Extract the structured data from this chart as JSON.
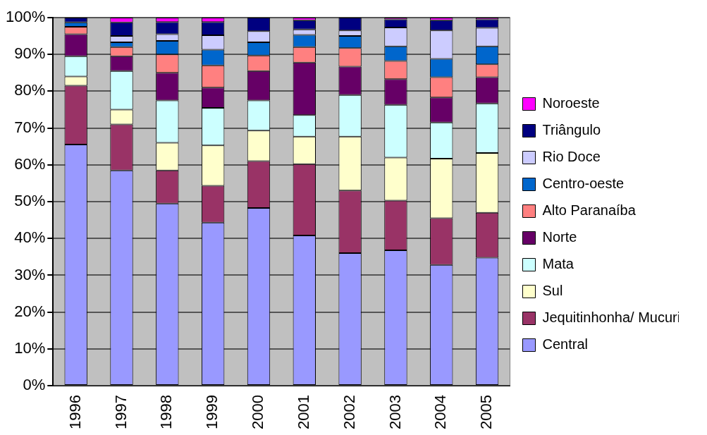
{
  "chart_data": {
    "type": "bar",
    "stacked": true,
    "categories": [
      "1996",
      "1997",
      "1998",
      "1999",
      "2000",
      "2001",
      "2002",
      "2003",
      "2004",
      "2005"
    ],
    "series": [
      {
        "name": "Central",
        "color": "#9999ff",
        "values": [
          65.5,
          58.5,
          49.5,
          44.3,
          48.3,
          40.8,
          36,
          36.8,
          32.8,
          34.8
        ]
      },
      {
        "name": "Jequitinhonha/ Mucuri",
        "color": "#993366",
        "values": [
          16,
          12.5,
          9,
          10,
          12.7,
          19.4,
          17,
          13.5,
          12.7,
          12.2
        ]
      },
      {
        "name": "Sul",
        "color": "#ffffcc",
        "values": [
          2.5,
          4,
          7.5,
          11,
          8.3,
          7.5,
          14.7,
          11.7,
          16.2,
          16.2
        ]
      },
      {
        "name": "Mata",
        "color": "#ccffff",
        "values": [
          5.5,
          10.5,
          11.5,
          10.2,
          8.2,
          5.8,
          11.3,
          14.3,
          9.8,
          13.5
        ]
      },
      {
        "name": "Norte",
        "color": "#660066",
        "values": [
          6,
          4,
          7.5,
          5.5,
          8,
          14.3,
          7.7,
          7,
          6.8,
          7.1
        ]
      },
      {
        "name": "Alto Paranaíba",
        "color": "#ff8080",
        "values": [
          2,
          2.5,
          5,
          6,
          4.2,
          4.2,
          5,
          4.9,
          5.5,
          3.5
        ]
      },
      {
        "name": "Centro-oeste",
        "color": "#0066cc",
        "values": [
          1.2,
          1.3,
          3.7,
          4.3,
          3.6,
          3.3,
          3.3,
          4,
          5,
          4.9
        ]
      },
      {
        "name": "Rio Doce",
        "color": "#ccccff",
        "values": [
          null,
          1.7,
          1.8,
          3.9,
          3,
          1.5,
          1.5,
          5.1,
          7.7,
          5
        ]
      },
      {
        "name": "Triângulo",
        "color": "#000080",
        "values": [
          1.3,
          3.7,
          3.3,
          3.6,
          3.7,
          2.5,
          3.5,
          2.2,
          2.8,
          2.3
        ]
      },
      {
        "name": "Noroeste",
        "color": "#ff00ff",
        "values": [
          null,
          1.3,
          1.2,
          1.2,
          null,
          0.7,
          null,
          0.5,
          0.7,
          0.5
        ]
      }
    ],
    "ylim": [
      0,
      100
    ],
    "yticks": [
      {
        "value": 0,
        "label": "0%"
      },
      {
        "value": 10,
        "label": "10%"
      },
      {
        "value": 20,
        "label": "20%"
      },
      {
        "value": 30,
        "label": "30%"
      },
      {
        "value": 40,
        "label": "40%"
      },
      {
        "value": 50,
        "label": "50%"
      },
      {
        "value": 60,
        "label": "60%"
      },
      {
        "value": 70,
        "label": "70%"
      },
      {
        "value": 80,
        "label": "80%"
      },
      {
        "value": 90,
        "label": "90%"
      },
      {
        "value": 100,
        "label": "100%"
      }
    ],
    "grid": "y",
    "legend": "right"
  }
}
